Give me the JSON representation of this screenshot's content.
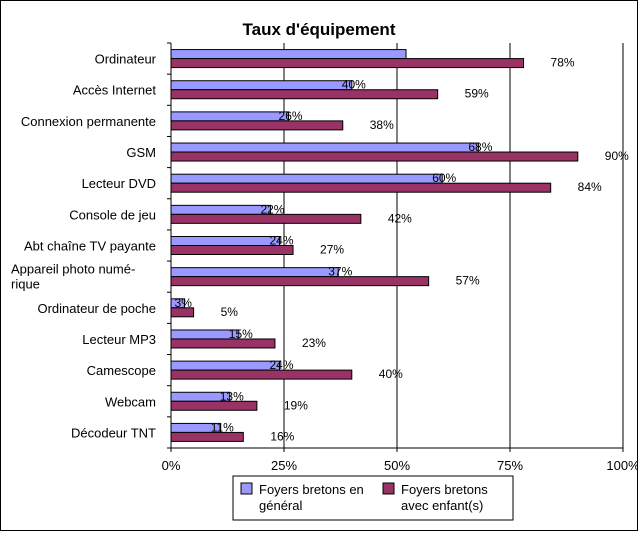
{
  "chart_data": {
    "type": "bar",
    "orientation": "horizontal",
    "title": "Taux d'équipement",
    "categories": [
      "Ordinateur",
      "Accès Internet",
      "Connexion permanente",
      "GSM",
      "Lecteur DVD",
      "Console de jeu",
      "Abt chaîne TV payante",
      "Appareil photo numé-|rique",
      "Ordinateur de poche",
      "Lecteur MP3",
      "Camescope",
      "Webcam",
      "Décodeur TNT"
    ],
    "series": [
      {
        "name": "Foyers bretons en général",
        "color": "#9999ff",
        "values": [
          52,
          40,
          26,
          68,
          60,
          22,
          24,
          37,
          3,
          15,
          24,
          13,
          11
        ],
        "labels": [
          "",
          "40%",
          "26%",
          "68%",
          "60%",
          "22%",
          "24%",
          "37%",
          "3%",
          "15%",
          "24%",
          "13%",
          "11%"
        ]
      },
      {
        "name": "Foyers bretons avec enfant(s)",
        "color": "#993366",
        "values": [
          78,
          59,
          38,
          90,
          84,
          42,
          27,
          57,
          5,
          23,
          40,
          19,
          16
        ],
        "labels": [
          "78%",
          "59%",
          "38%",
          "90%",
          "84%",
          "42%",
          "27%",
          "57%",
          "5%",
          "23%",
          "40%",
          "19%",
          "16%"
        ]
      }
    ],
    "xlim": [
      0,
      100
    ],
    "xticks": [
      "0%",
      "25%",
      "50%",
      "75%",
      "100%"
    ],
    "legend_entries": [
      "Foyers bretons en|général",
      "Foyers bretons|avec enfant(s)"
    ],
    "legend_position": "bottom",
    "grid": "vertical"
  }
}
